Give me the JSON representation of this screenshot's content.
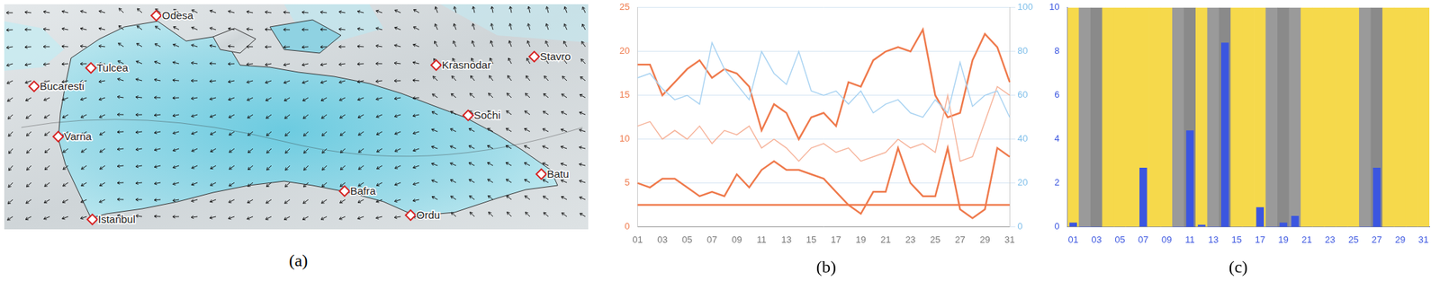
{
  "map": {
    "type": "map",
    "title": "(a)",
    "labels": [
      "Odesa",
      "Tulcea",
      "Bucaresti",
      "Varna",
      "Istanbul",
      "Krasnodar",
      "Stavro",
      "Sochi",
      "Bafra",
      "Ordu",
      "Batu"
    ]
  },
  "chart_data": [
    {
      "type": "line",
      "title": "(b)",
      "categories": [
        "01",
        null,
        "03",
        null,
        "05",
        null,
        "07",
        null,
        "09",
        null,
        "11",
        null,
        "13",
        null,
        "15",
        null,
        "17",
        null,
        "19",
        null,
        "21",
        null,
        "23",
        null,
        "25",
        null,
        "27",
        null,
        "29",
        null,
        "31"
      ],
      "series": [
        {
          "color": "#ef7a4c",
          "values": [
            18.5,
            18.5,
            15,
            16.5,
            18,
            19,
            17,
            18,
            17.5,
            16,
            11,
            14,
            13,
            10,
            12.5,
            13,
            11.5,
            16.5,
            16,
            19,
            20,
            20.5,
            20,
            22.5,
            15,
            12.5,
            13,
            19,
            22,
            20.5,
            16.5
          ]
        },
        {
          "color": "#f6b39a",
          "values": [
            11.5,
            12,
            10,
            11,
            10,
            11.5,
            9.5,
            11,
            10.5,
            11.5,
            9,
            10,
            9,
            7.5,
            9,
            9.5,
            8.5,
            9,
            7.5,
            8,
            8.5,
            10,
            9,
            9.5,
            8.5,
            15,
            7.5,
            8,
            12,
            16,
            15
          ]
        },
        {
          "color": "#ef7a4c",
          "values": [
            5,
            4.5,
            5.5,
            5.5,
            4.5,
            3.5,
            4,
            3.5,
            6,
            4.5,
            6.5,
            7.5,
            6.5,
            6.5,
            6,
            5.5,
            4,
            2.5,
            1.5,
            4,
            4,
            9,
            5,
            3.5,
            3.5,
            9,
            2,
            1,
            2,
            9,
            8
          ]
        },
        {
          "color": "#ef7a4c",
          "values": [
            2.5,
            2.5,
            2.5,
            2.5,
            2.5,
            2.5,
            2.5,
            2.5,
            2.5,
            2.5,
            2.5,
            2.5,
            2.5,
            2.5,
            2.5,
            2.5,
            2.5,
            2.5,
            2.5,
            2.5,
            2.5,
            2.5,
            2.5,
            2.5,
            2.5,
            2.5,
            2.5,
            2.5,
            2.5,
            2.5,
            2.5
          ]
        },
        {
          "color": "#a9d3f2",
          "axis": "y2",
          "values": [
            68,
            70,
            63,
            58,
            60,
            56,
            84,
            72,
            65,
            58,
            80,
            70,
            65,
            80,
            62,
            60,
            62,
            56,
            62,
            52,
            56,
            58,
            52,
            50,
            58,
            52,
            75,
            55,
            60,
            62,
            50
          ]
        }
      ],
      "ylim": [
        0,
        25
      ],
      "yticks": [
        0,
        5,
        10,
        15,
        20,
        25
      ],
      "y2lim": [
        0,
        100
      ],
      "y2ticks": [
        0,
        20,
        40,
        60,
        80,
        100
      ],
      "grid": true
    },
    {
      "type": "bar",
      "title": "(c)",
      "categories": [
        "01",
        null,
        "03",
        null,
        "05",
        null,
        "07",
        null,
        "09",
        null,
        "11",
        null,
        "13",
        null,
        "15",
        null,
        "17",
        null,
        "19",
        null,
        "21",
        null,
        "23",
        null,
        "25",
        null,
        "27",
        null,
        "29",
        null,
        "31"
      ],
      "series": [
        {
          "colors": [
            "#f6d94b",
            "#9a9a9a",
            "#8a8a8a",
            "#f6d94b",
            "#f6d94b",
            "#f6d94b",
            "#f6d94b",
            "#f6d94b",
            "#f6d94b",
            "#9a9a9a",
            "#8a8a8a",
            "#f6d94b",
            "#9a9a9a",
            "#8a8a8a",
            "#f6d94b",
            "#f6d94b",
            "#f6d94b",
            "#9a9a9a",
            "#8a8a8a",
            "#9a9a9a",
            "#f6d94b",
            "#f6d94b",
            "#f6d94b",
            "#f6d94b",
            "#f6d94b",
            "#9a9a9a",
            "#8a8a8a",
            "#f6d94b",
            "#f6d94b",
            "#f6d94b",
            "#f6d94b"
          ],
          "values": [
            10,
            10,
            10,
            10,
            10,
            10,
            10,
            10,
            10,
            10,
            10,
            10,
            10,
            10,
            10,
            10,
            10,
            10,
            10,
            10,
            10,
            10,
            10,
            10,
            10,
            10,
            10,
            10,
            10,
            10,
            10
          ]
        },
        {
          "color": "#3b56e0",
          "values": [
            0.2,
            0,
            0,
            0,
            0,
            0,
            2.7,
            0,
            0,
            0,
            4.4,
            0.1,
            0,
            8.4,
            0,
            0,
            0.9,
            0,
            0.2,
            0.5,
            0,
            0,
            0,
            0,
            0,
            0,
            2.7,
            0,
            0,
            0,
            0
          ]
        }
      ],
      "ylim": [
        0,
        10
      ],
      "yticks": [
        0,
        2,
        4,
        6,
        8,
        10
      ],
      "grid": false
    }
  ]
}
